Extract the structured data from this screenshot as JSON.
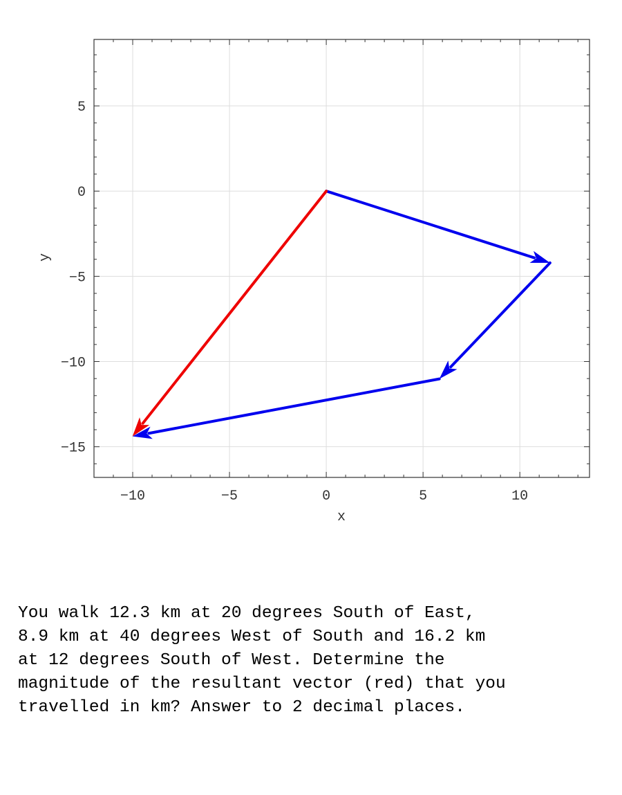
{
  "chart_data": {
    "type": "vector-diagram",
    "xlabel": "x",
    "ylabel": "y",
    "xlim": [
      -12,
      13.6
    ],
    "ylim": [
      -16.8,
      8.9
    ],
    "xticks": [
      -10,
      -5,
      0,
      5,
      10
    ],
    "yticks": [
      5,
      0,
      -5,
      -10,
      -15
    ],
    "xtick_labels": [
      "−10",
      "−5",
      "0",
      "5",
      "10"
    ],
    "ytick_labels": [
      "5",
      "0",
      "−5",
      "−10",
      "−15"
    ],
    "grid": true,
    "vectors": [
      {
        "from": [
          0,
          0
        ],
        "to": [
          11.56,
          -4.21
        ],
        "color": "#0000ee"
      },
      {
        "from": [
          11.56,
          -4.21
        ],
        "to": [
          5.84,
          -11.02
        ],
        "color": "#0000ee"
      },
      {
        "from": [
          5.84,
          -11.02
        ],
        "to": [
          -10.01,
          -14.39
        ],
        "color": "#0000ee"
      },
      {
        "from": [
          0,
          0
        ],
        "to": [
          -10.01,
          -14.39
        ],
        "color": "#ee0000"
      }
    ]
  },
  "question": "You walk 12.3 km at 20 degrees South of East,\n8.9 km at 40 degrees West of South and 16.2 km\nat 12 degrees South of West.  Determine the\nmagnitude of the resultant vector (red) that you\ntravelled in km? Answer to 2 decimal places."
}
